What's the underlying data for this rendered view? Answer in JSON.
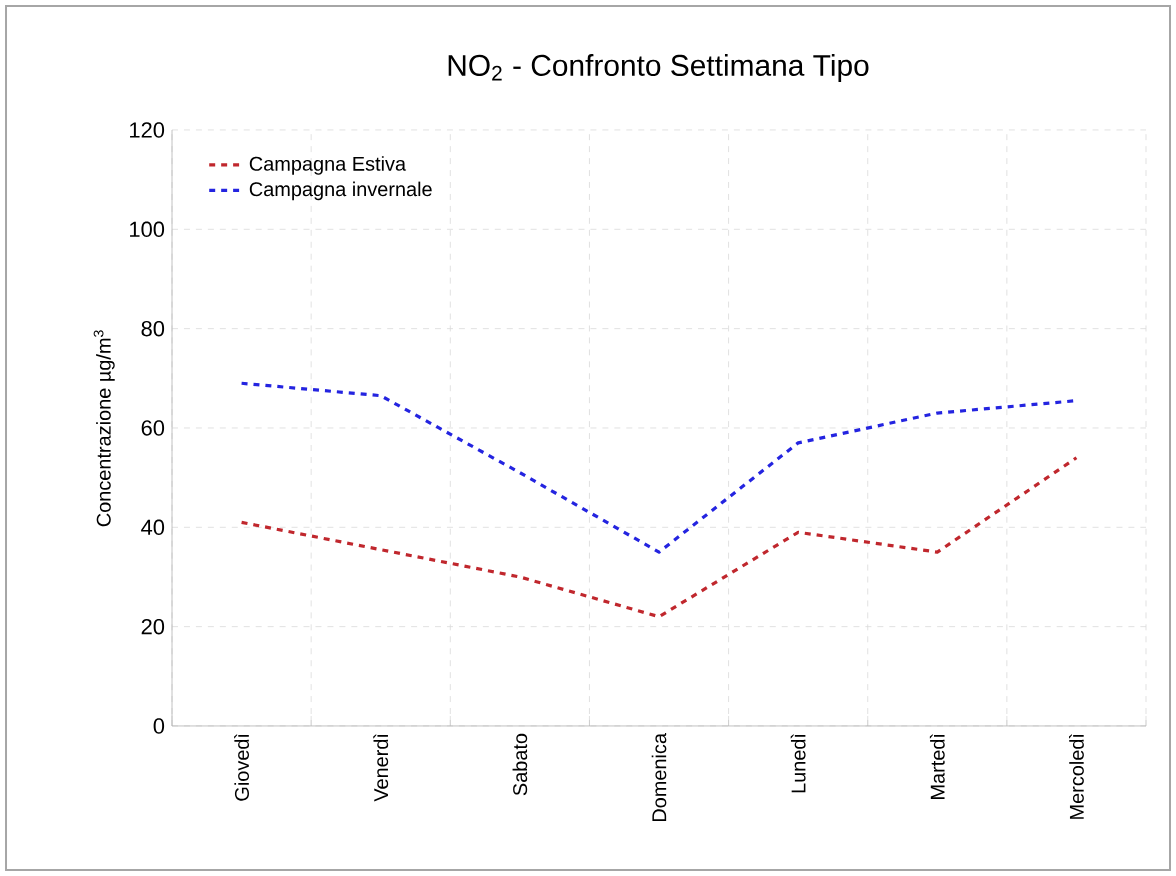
{
  "chart_data": {
    "type": "line",
    "title": "NO$_{2}$ - Confronto Settimana Tipo",
    "ylabel": "Concentrazione µg/m$^{3}$",
    "categories": [
      "Giovedì",
      "Venerdì",
      "Sabato",
      "Domenica",
      "Lunedì",
      "Martedì",
      "Mercoledì"
    ],
    "series": [
      {
        "name": "Campagna Estiva",
        "color": "#c0272d",
        "values": [
          41,
          35.5,
          30,
          22,
          39,
          35,
          54
        ]
      },
      {
        "name": "Campagna invernale",
        "color": "#2424e0",
        "values": [
          69,
          66.5,
          51,
          35,
          57,
          63,
          65.5
        ]
      }
    ],
    "ylim": [
      0,
      120
    ],
    "yticks": [
      0,
      20,
      40,
      60,
      80,
      100,
      120
    ],
    "grid": true,
    "legend": "top left",
    "line_style": "dashed",
    "marker": "none"
  }
}
